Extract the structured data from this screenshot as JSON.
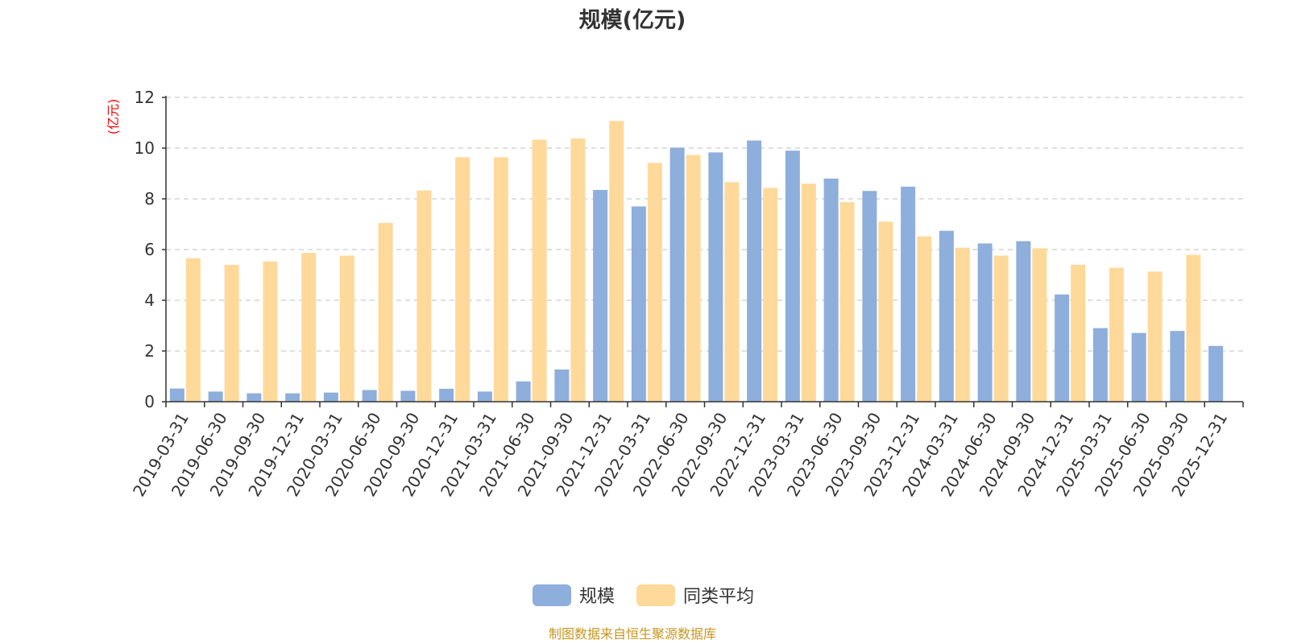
{
  "title": "规模(亿元)",
  "source_note": "制图数据来自恒生聚源数据库",
  "chart_data": {
    "type": "bar",
    "title": "规模(亿元)",
    "ylabel": "(亿元)",
    "xlabel": "",
    "ylim": [
      0,
      12
    ],
    "yticks": [
      0,
      2,
      4,
      6,
      8,
      10,
      12
    ],
    "grid": true,
    "legend_position": "bottom",
    "categories": [
      "2019-03-31",
      "2019-06-30",
      "2019-09-30",
      "2019-12-31",
      "2020-03-31",
      "2020-06-30",
      "2020-09-30",
      "2020-12-31",
      "2021-03-31",
      "2021-06-30",
      "2021-09-30",
      "2021-12-31",
      "2022-03-31",
      "2022-06-30",
      "2022-09-30",
      "2022-12-31",
      "2023-03-31",
      "2023-06-30",
      "2023-09-30",
      "2023-12-31",
      "2024-03-31",
      "2024-06-30",
      "2024-09-30",
      "2024-12-31",
      "2025-03-31",
      "2025-06-30",
      "2025-09-30",
      "2025-12-31"
    ],
    "series": [
      {
        "name": "规模",
        "color": "#8eaedb",
        "values": [
          0.52,
          0.4,
          0.33,
          0.33,
          0.36,
          0.46,
          0.43,
          0.51,
          0.4,
          0.8,
          1.27,
          8.35,
          7.7,
          10.02,
          9.83,
          10.3,
          9.9,
          8.8,
          8.31,
          8.48,
          6.74,
          6.24,
          6.33,
          4.23,
          2.9,
          2.71,
          2.79,
          2.2
        ]
      },
      {
        "name": "同类平均",
        "color": "#ffd99a",
        "values": [
          5.66,
          5.4,
          5.53,
          5.87,
          5.76,
          7.05,
          8.33,
          9.64,
          9.64,
          10.33,
          10.38,
          11.07,
          9.42,
          9.73,
          8.66,
          8.43,
          8.6,
          7.87,
          7.1,
          6.52,
          6.07,
          5.76,
          6.05,
          5.4,
          5.28,
          5.13,
          5.79,
          null
        ]
      }
    ]
  }
}
